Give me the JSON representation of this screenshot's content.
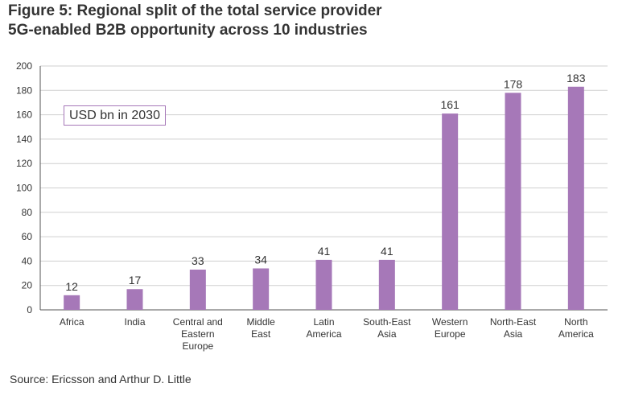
{
  "title_line1": "Figure 5: Regional split of the total service provider",
  "title_line2": "5G-enabled B2B opportunity across 10 industries",
  "unit_label": "USD bn in 2030",
  "source": "Source: Ericsson and Arthur D. Little",
  "bar_color": "#a678b8",
  "chart_data": {
    "type": "bar",
    "categories": [
      [
        "Africa"
      ],
      [
        "India"
      ],
      [
        "Central and",
        "Eastern",
        "Europe"
      ],
      [
        "Middle",
        "East"
      ],
      [
        "Latin",
        "America"
      ],
      [
        "South-East",
        "Asia"
      ],
      [
        "Western",
        "Europe"
      ],
      [
        "North-East",
        "Asia"
      ],
      [
        "North",
        "America"
      ]
    ],
    "values": [
      12,
      17,
      33,
      34,
      41,
      41,
      161,
      178,
      183
    ],
    "ylim": [
      0,
      200
    ],
    "yticks": [
      0,
      20,
      40,
      60,
      80,
      100,
      120,
      140,
      160,
      180,
      200
    ],
    "grid": true
  }
}
